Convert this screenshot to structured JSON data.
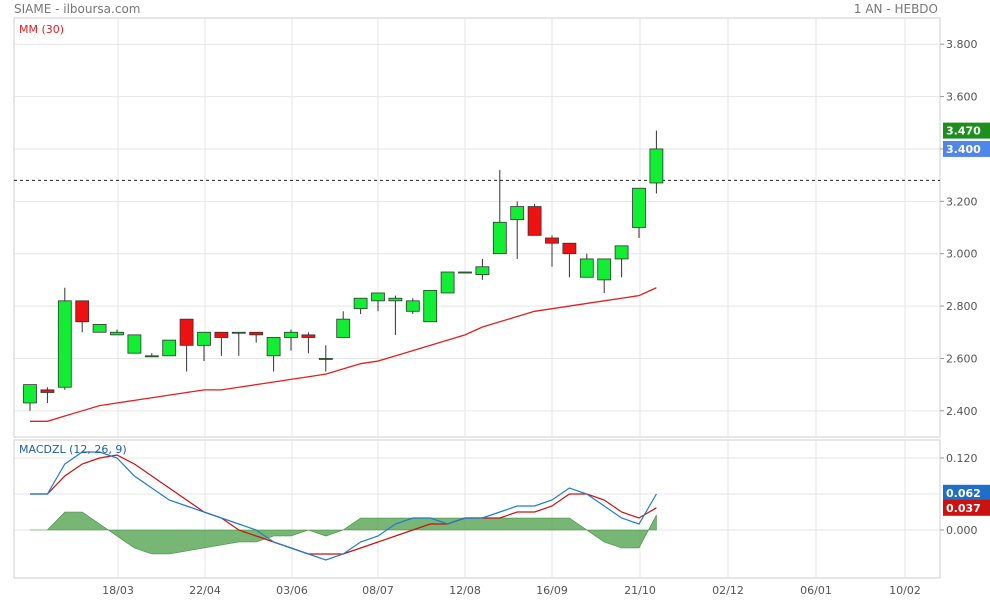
{
  "header": {
    "ticker": "SIAME - ilboursa.com",
    "period": "1 AN - HEBDO"
  },
  "chart_data": [
    {
      "type": "candlestick",
      "title": "",
      "indicator_label": "MM (30)",
      "ylim": [
        2.3,
        3.9
      ],
      "y_ticks": [
        "2.400",
        "2.600",
        "2.800",
        "3.000",
        "3.200",
        "3.400",
        "3.600",
        "3.800"
      ],
      "x_ticks": [
        "18/03",
        "22/04",
        "03/06",
        "08/07",
        "12/08",
        "16/09",
        "21/10",
        "02/12",
        "06/01",
        "10/02"
      ],
      "reference_line": 3.28,
      "last_high": "3.470",
      "last_close": "3.400",
      "candles": [
        {
          "o": 2.43,
          "h": 2.5,
          "l": 2.4,
          "c": 2.5
        },
        {
          "o": 2.48,
          "h": 2.49,
          "l": 2.43,
          "c": 2.47
        },
        {
          "o": 2.49,
          "h": 2.87,
          "l": 2.48,
          "c": 2.82
        },
        {
          "o": 2.82,
          "h": 2.82,
          "l": 2.7,
          "c": 2.74
        },
        {
          "o": 2.7,
          "h": 2.73,
          "l": 2.7,
          "c": 2.73
        },
        {
          "o": 2.69,
          "h": 2.71,
          "l": 2.69,
          "c": 2.7
        },
        {
          "o": 2.62,
          "h": 2.69,
          "l": 2.62,
          "c": 2.69
        },
        {
          "o": 2.61,
          "h": 2.62,
          "l": 2.61,
          "c": 2.61
        },
        {
          "o": 2.61,
          "h": 2.67,
          "l": 2.61,
          "c": 2.67
        },
        {
          "o": 2.75,
          "h": 2.75,
          "l": 2.55,
          "c": 2.65
        },
        {
          "o": 2.65,
          "h": 2.7,
          "l": 2.59,
          "c": 2.7
        },
        {
          "o": 2.7,
          "h": 2.7,
          "l": 2.61,
          "c": 2.68
        },
        {
          "o": 2.7,
          "h": 2.7,
          "l": 2.61,
          "c": 2.7
        },
        {
          "o": 2.7,
          "h": 2.7,
          "l": 2.66,
          "c": 2.69
        },
        {
          "o": 2.61,
          "h": 2.68,
          "l": 2.55,
          "c": 2.68
        },
        {
          "o": 2.68,
          "h": 2.71,
          "l": 2.63,
          "c": 2.7
        },
        {
          "o": 2.69,
          "h": 2.7,
          "l": 2.62,
          "c": 2.68
        },
        {
          "o": 2.6,
          "h": 2.65,
          "l": 2.55,
          "c": 2.6
        },
        {
          "o": 2.68,
          "h": 2.78,
          "l": 2.68,
          "c": 2.75
        },
        {
          "o": 2.79,
          "h": 2.83,
          "l": 2.77,
          "c": 2.83
        },
        {
          "o": 2.82,
          "h": 2.85,
          "l": 2.78,
          "c": 2.85
        },
        {
          "o": 2.82,
          "h": 2.84,
          "l": 2.69,
          "c": 2.83
        },
        {
          "o": 2.78,
          "h": 2.83,
          "l": 2.77,
          "c": 2.82
        },
        {
          "o": 2.74,
          "h": 2.86,
          "l": 2.74,
          "c": 2.86
        },
        {
          "o": 2.85,
          "h": 2.93,
          "l": 2.85,
          "c": 2.93
        },
        {
          "o": 2.93,
          "h": 2.93,
          "l": 2.93,
          "c": 2.93
        },
        {
          "o": 2.92,
          "h": 2.98,
          "l": 2.9,
          "c": 2.95
        },
        {
          "o": 3.0,
          "h": 3.32,
          "l": 3.0,
          "c": 3.12
        },
        {
          "o": 3.13,
          "h": 3.2,
          "l": 2.98,
          "c": 3.18
        },
        {
          "o": 3.18,
          "h": 3.19,
          "l": 3.07,
          "c": 3.07
        },
        {
          "o": 3.06,
          "h": 3.07,
          "l": 2.95,
          "c": 3.04
        },
        {
          "o": 3.04,
          "h": 3.04,
          "l": 2.91,
          "c": 3.0
        },
        {
          "o": 2.91,
          "h": 3.0,
          "l": 2.91,
          "c": 2.98
        },
        {
          "o": 2.9,
          "h": 2.98,
          "l": 2.85,
          "c": 2.98
        },
        {
          "o": 2.98,
          "h": 3.03,
          "l": 2.91,
          "c": 3.03
        },
        {
          "o": 3.1,
          "h": 3.25,
          "l": 3.06,
          "c": 3.25
        },
        {
          "o": 3.27,
          "h": 3.47,
          "l": 3.23,
          "c": 3.4
        }
      ],
      "mm30": [
        2.36,
        2.36,
        2.38,
        2.4,
        2.42,
        2.43,
        2.44,
        2.45,
        2.46,
        2.47,
        2.48,
        2.48,
        2.49,
        2.5,
        2.51,
        2.52,
        2.53,
        2.54,
        2.56,
        2.58,
        2.59,
        2.61,
        2.63,
        2.65,
        2.67,
        2.69,
        2.72,
        2.74,
        2.76,
        2.78,
        2.79,
        2.8,
        2.81,
        2.82,
        2.83,
        2.84,
        2.87
      ]
    },
    {
      "type": "line",
      "title": "",
      "indicator_label": "MACDZL (12, 26, 9)",
      "ylim": [
        -0.08,
        0.15
      ],
      "y_ticks": [
        "0.120",
        "0.000"
      ],
      "macd_value": "0.062",
      "signal_value": "0.037",
      "colors": {
        "macd": "#1f7bd1",
        "signal": "#cc1111",
        "hist": "#4a9e45"
      },
      "macd": [
        0.06,
        0.06,
        0.11,
        0.13,
        0.13,
        0.12,
        0.09,
        0.07,
        0.05,
        0.04,
        0.03,
        0.02,
        0.01,
        0.0,
        -0.02,
        -0.03,
        -0.04,
        -0.05,
        -0.04,
        -0.02,
        -0.01,
        0.01,
        0.02,
        0.02,
        0.01,
        0.02,
        0.02,
        0.03,
        0.04,
        0.04,
        0.05,
        0.07,
        0.06,
        0.04,
        0.02,
        0.01,
        0.06
      ],
      "signal": [
        0.06,
        0.06,
        0.09,
        0.11,
        0.12,
        0.125,
        0.11,
        0.09,
        0.07,
        0.05,
        0.03,
        0.02,
        0.0,
        -0.01,
        -0.02,
        -0.03,
        -0.04,
        -0.04,
        -0.04,
        -0.03,
        -0.02,
        -0.01,
        0.0,
        0.01,
        0.01,
        0.02,
        0.02,
        0.02,
        0.03,
        0.03,
        0.04,
        0.06,
        0.06,
        0.05,
        0.03,
        0.02,
        0.037
      ],
      "hist": [
        0.0,
        0.0,
        0.03,
        0.03,
        0.01,
        -0.01,
        -0.03,
        -0.04,
        -0.04,
        -0.035,
        -0.03,
        -0.025,
        -0.02,
        -0.02,
        -0.01,
        -0.01,
        0.0,
        -0.01,
        0.0,
        0.02,
        0.02,
        0.02,
        0.02,
        0.02,
        0.02,
        0.02,
        0.02,
        0.02,
        0.02,
        0.02,
        0.02,
        0.02,
        0.0,
        -0.02,
        -0.03,
        -0.03,
        0.025
      ]
    }
  ]
}
